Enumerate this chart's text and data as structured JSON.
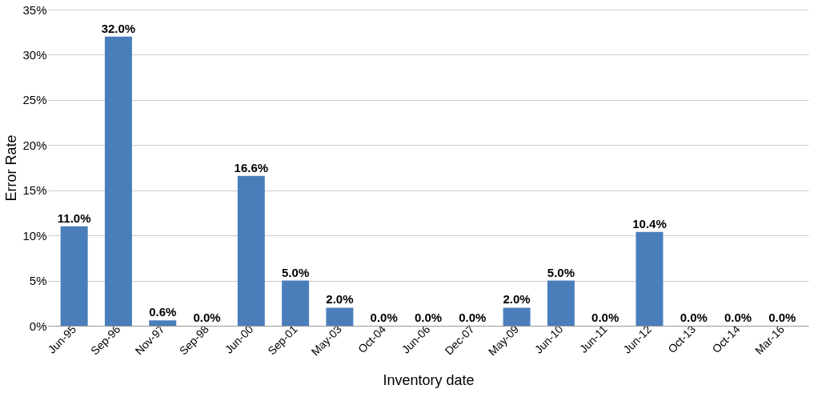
{
  "chart_data": {
    "type": "bar",
    "xlabel": "Inventory date",
    "ylabel": "Error Rate",
    "categories": [
      "Jun-95",
      "Sep-96",
      "Nov-97",
      "Sep-98",
      "Jun-00",
      "Sep-01",
      "May-03",
      "Oct-04",
      "Jun-06",
      "Dec-07",
      "May-09",
      "Jun-10",
      "Jun-11",
      "Jun-12",
      "Oct-13",
      "Oct-14",
      "Mar-16"
    ],
    "values": [
      11.0,
      32.0,
      0.6,
      0.0,
      16.6,
      5.0,
      2.0,
      0.0,
      0.0,
      0.0,
      2.0,
      5.0,
      0.0,
      10.4,
      0.0,
      0.0,
      0.0
    ],
    "value_labels": [
      "11.0%",
      "32.0%",
      "0.6%",
      "0.0%",
      "16.6%",
      "5.0%",
      "2.0%",
      "0.0%",
      "0.0%",
      "0.0%",
      "2.0%",
      "5.0%",
      "0.0%",
      "10.4%",
      "0.0%",
      "0.0%",
      "0.0%"
    ],
    "color": "#4a7ebb",
    "ylim": [
      0,
      35
    ],
    "yticks": [
      {
        "value": 0,
        "label": "0%"
      },
      {
        "value": 5,
        "label": "5%"
      },
      {
        "value": 10,
        "label": "10%"
      },
      {
        "value": 15,
        "label": "15%"
      },
      {
        "value": 20,
        "label": "20%"
      },
      {
        "value": 25,
        "label": "25%"
      },
      {
        "value": 30,
        "label": "30%"
      },
      {
        "value": 35,
        "label": "35%"
      }
    ],
    "grid": "y"
  }
}
